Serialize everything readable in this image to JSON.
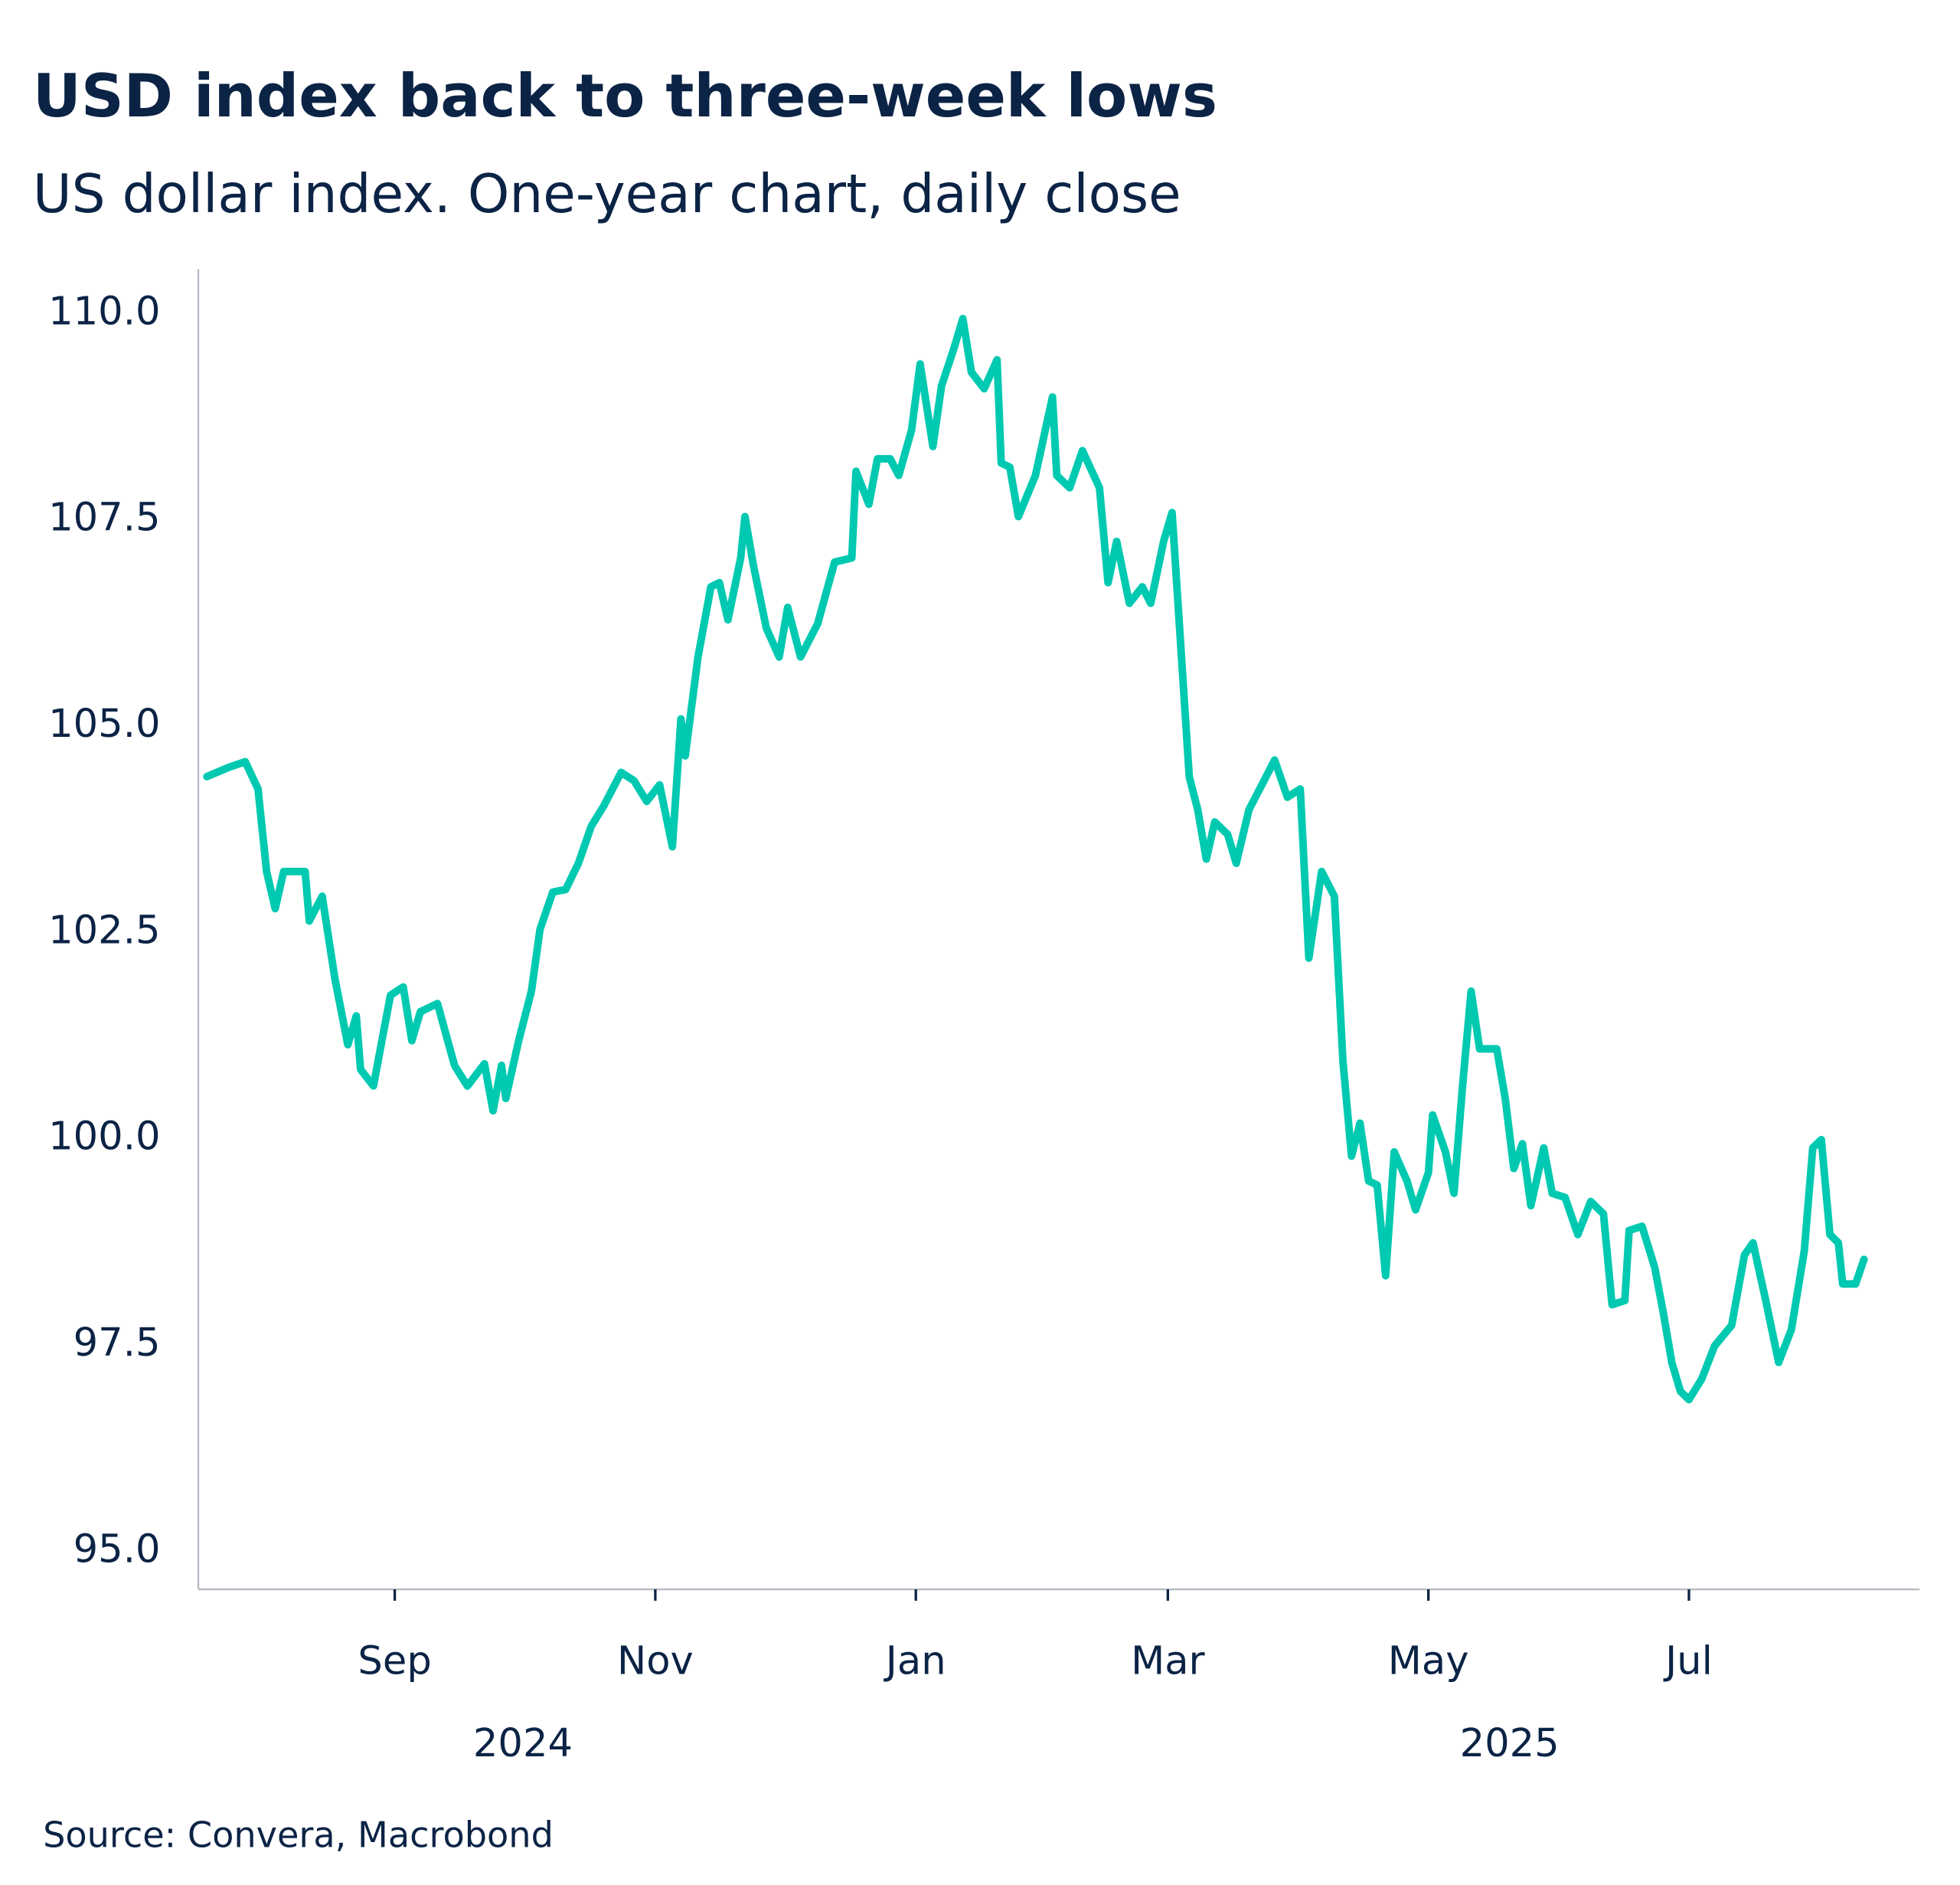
{
  "header": {
    "title": "USD index back to three-week lows",
    "subtitle": "US dollar index. One-year chart, daily close"
  },
  "footer": {
    "source": "Source: Convera, Macrobond"
  },
  "chart_data": {
    "type": "line",
    "title": "USD index back to three-week lows",
    "subtitle": "US dollar index. One-year chart, daily close",
    "xlabel": "",
    "ylabel": "",
    "xlim": [
      "2024-07-17",
      "2025-08-24"
    ],
    "ylim": [
      94.5,
      110.5
    ],
    "grid": false,
    "legend": "none",
    "colors": {
      "line": "#00c9b1",
      "text": "#0b2345",
      "axis": "#b8bcc4"
    },
    "y_ticks": [
      "95.0",
      "97.5",
      "100.0",
      "102.5",
      "105.0",
      "107.5",
      "110.0"
    ],
    "x_ticks": [
      {
        "date": "2024-09-01",
        "label": "Sep"
      },
      {
        "date": "2024-11-01",
        "label": "Nov"
      },
      {
        "date": "2025-01-01",
        "label": "Jan"
      },
      {
        "date": "2025-03-01",
        "label": "Mar"
      },
      {
        "date": "2025-05-01",
        "label": "May"
      },
      {
        "date": "2025-07-01",
        "label": "Jul"
      }
    ],
    "year_labels": [
      {
        "date": "2024-10-01",
        "label": "2024"
      },
      {
        "date": "2025-05-20",
        "label": "2025"
      }
    ],
    "series": [
      {
        "x": [
          "2024-07-19",
          "2024-07-24",
          "2024-07-28",
          "2024-07-31",
          "2024-08-02",
          "2024-08-04",
          "2024-08-06",
          "2024-08-11",
          "2024-08-12",
          "2024-08-15",
          "2024-08-18",
          "2024-08-21",
          "2024-08-23",
          "2024-08-24",
          "2024-08-27",
          "2024-08-29",
          "2024-08-31",
          "2024-09-03",
          "2024-09-05",
          "2024-09-07",
          "2024-09-11",
          "2024-09-15",
          "2024-09-18",
          "2024-09-22",
          "2024-09-24",
          "2024-09-26",
          "2024-09-27",
          "2024-09-30",
          "2024-10-03",
          "2024-10-05",
          "2024-10-08",
          "2024-10-11",
          "2024-10-14",
          "2024-10-17",
          "2024-10-20",
          "2024-10-24",
          "2024-10-27",
          "2024-10-30",
          "2024-11-02",
          "2024-11-05",
          "2024-11-07",
          "2024-11-08",
          "2024-11-11",
          "2024-11-14",
          "2024-11-16",
          "2024-11-18",
          "2024-11-21",
          "2024-11-22",
          "2024-11-24",
          "2024-11-27",
          "2024-11-30",
          "2024-12-02",
          "2024-12-05",
          "2024-12-09",
          "2024-12-13",
          "2024-12-17",
          "2024-12-18",
          "2024-12-21",
          "2024-12-23",
          "2024-12-26",
          "2024-12-28",
          "2024-12-31",
          "2025-01-02",
          "2025-01-05",
          "2025-01-07",
          "2025-01-10",
          "2025-01-12",
          "2025-01-14",
          "2025-01-17",
          "2025-01-20",
          "2025-01-21",
          "2025-01-23",
          "2025-01-25",
          "2025-01-29",
          "2025-02-02",
          "2025-02-03",
          "2025-02-06",
          "2025-02-09",
          "2025-02-13",
          "2025-02-15",
          "2025-02-17",
          "2025-02-20",
          "2025-02-23",
          "2025-02-25",
          "2025-02-28",
          "2025-03-02",
          "2025-03-04",
          "2025-03-06",
          "2025-03-08",
          "2025-03-10",
          "2025-03-12",
          "2025-03-15",
          "2025-03-17",
          "2025-03-20",
          "2025-03-23",
          "2025-03-26",
          "2025-03-29",
          "2025-04-01",
          "2025-04-03",
          "2025-04-06",
          "2025-04-09",
          "2025-04-11",
          "2025-04-13",
          "2025-04-15",
          "2025-04-17",
          "2025-04-19",
          "2025-04-21",
          "2025-04-23",
          "2025-04-26",
          "2025-04-28",
          "2025-05-01",
          "2025-05-02",
          "2025-05-05",
          "2025-05-07",
          "2025-05-09",
          "2025-05-11",
          "2025-05-13",
          "2025-05-17",
          "2025-05-19",
          "2025-05-21",
          "2025-05-23",
          "2025-05-25",
          "2025-05-28",
          "2025-05-30",
          "2025-06-02",
          "2025-06-05",
          "2025-06-08",
          "2025-06-11",
          "2025-06-13",
          "2025-06-16",
          "2025-06-17",
          "2025-06-20",
          "2025-06-23",
          "2025-06-25",
          "2025-06-27",
          "2025-06-29",
          "2025-07-01",
          "2025-07-04",
          "2025-07-07",
          "2025-07-11",
          "2025-07-14",
          "2025-07-16",
          "2025-07-19",
          "2025-07-22",
          "2025-07-25",
          "2025-07-28",
          "2025-07-30",
          "2025-08-01",
          "2025-08-03",
          "2025-08-05",
          "2025-08-06",
          "2025-08-09",
          "2025-08-11"
        ],
        "values": [
          104.35,
          104.46,
          104.53,
          104.2,
          103.2,
          102.75,
          103.2,
          103.2,
          102.6,
          102.9,
          101.9,
          101.1,
          101.45,
          100.8,
          100.6,
          101.15,
          101.7,
          101.8,
          101.15,
          101.5,
          101.6,
          100.85,
          100.6,
          100.87,
          100.3,
          100.85,
          100.45,
          101.15,
          101.75,
          102.5,
          102.95,
          102.98,
          103.3,
          103.75,
          104.0,
          104.4,
          104.3,
          104.05,
          104.25,
          103.5,
          105.05,
          104.6,
          105.8,
          106.65,
          106.7,
          106.25,
          107.0,
          107.5,
          106.9,
          106.15,
          105.8,
          106.4,
          105.8,
          106.2,
          106.95,
          107.0,
          108.05,
          107.65,
          108.2,
          108.2,
          108.0,
          108.55,
          109.35,
          108.35,
          109.08,
          109.55,
          109.9,
          109.25,
          109.05,
          109.4,
          108.15,
          108.1,
          107.5,
          108.0,
          108.95,
          108.0,
          107.85,
          108.3,
          107.85,
          106.7,
          107.2,
          106.45,
          106.65,
          106.45,
          107.2,
          107.55,
          105.95,
          104.35,
          103.95,
          103.35,
          103.8,
          103.65,
          103.3,
          103.95,
          104.25,
          104.55,
          104.1,
          104.2,
          102.15,
          103.2,
          102.9,
          100.9,
          99.75,
          100.15,
          99.45,
          99.4,
          98.3,
          99.8,
          99.45,
          99.1,
          99.55,
          100.25,
          99.8,
          99.3,
          100.6,
          101.75,
          101.05,
          101.05,
          100.45,
          99.6,
          99.9,
          99.15,
          99.85,
          99.3,
          99.25,
          98.8,
          99.2,
          99.05,
          97.95,
          98.0,
          98.85,
          98.9,
          98.4,
          97.85,
          97.25,
          96.9,
          96.8,
          97.05,
          97.45,
          97.7,
          98.55,
          98.7,
          98.0,
          97.25,
          97.65,
          98.6,
          99.85,
          99.95,
          98.8,
          98.7,
          98.2,
          98.2,
          98.5
        ]
      }
    ]
  }
}
